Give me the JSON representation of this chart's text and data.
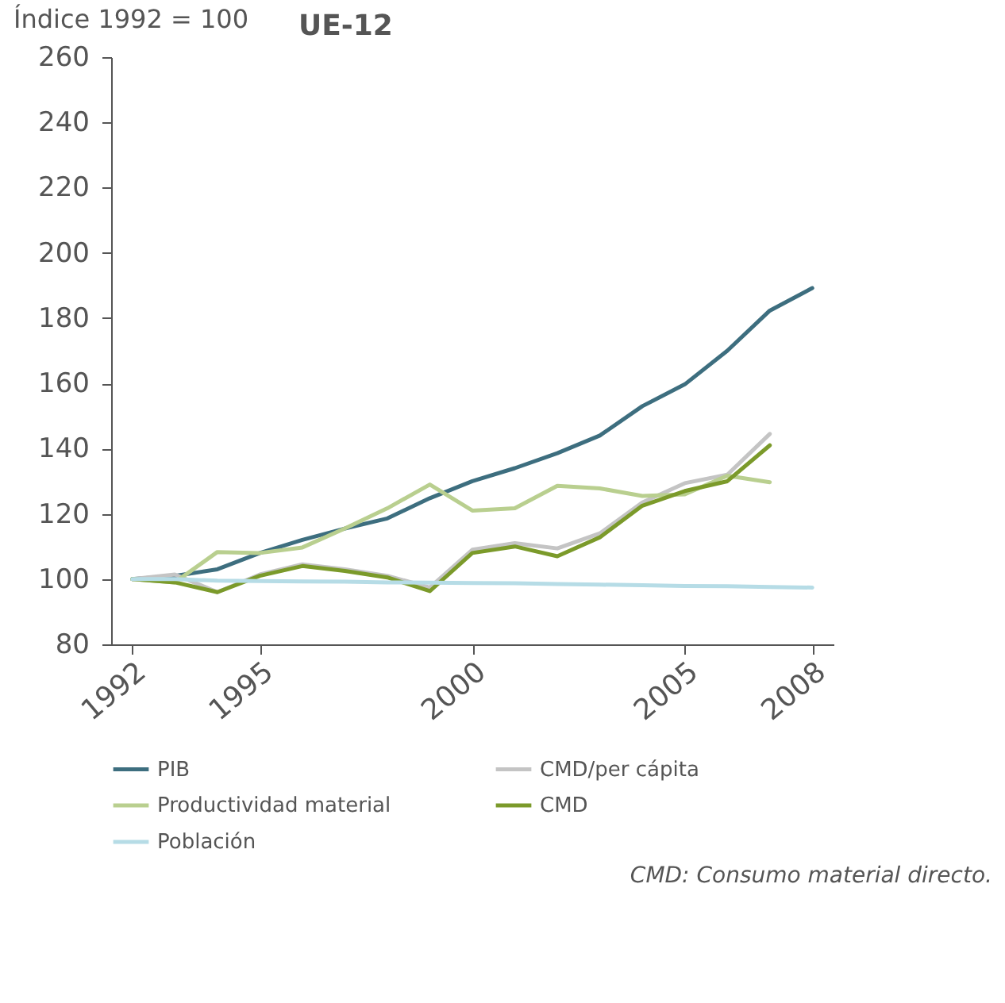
{
  "chart_data": {
    "type": "line",
    "title": "UE-12",
    "ylabel": "Índice 1992 = 100",
    "annotations": [
      "CMD: Consumo material directo."
    ],
    "x": [
      1992,
      1993,
      1994,
      1995,
      1996,
      1997,
      1998,
      1999,
      2000,
      2001,
      2002,
      2003,
      2004,
      2005,
      2006,
      2007,
      2008
    ],
    "series": [
      {
        "name": "PIB",
        "color": "#3d6e7f",
        "values": [
          100,
          101,
          103,
          108,
          112,
          115.5,
          118.6,
          124.8,
          130,
          134,
          138.6,
          144,
          153,
          159.7,
          170,
          182.3,
          189.2
        ]
      },
      {
        "name": "CMD/per cápita",
        "color": "#c4c4c4",
        "values": [
          100,
          101.4,
          96,
          101.4,
          104.5,
          103,
          101,
          97.4,
          109,
          111,
          109.4,
          114,
          123.5,
          129.4,
          132,
          144.5,
          null
        ]
      },
      {
        "name": "Productividad material",
        "color": "#b9cf8f",
        "values": [
          100,
          99,
          108.3,
          108,
          109.7,
          115.5,
          121.7,
          129,
          121,
          121.7,
          128.6,
          127.8,
          125.5,
          126,
          131.7,
          129.7,
          null
        ]
      },
      {
        "name": "CMD",
        "color": "#7b9a2a",
        "values": [
          100,
          99,
          96,
          101,
          104,
          102.5,
          100.5,
          96.3,
          108,
          110,
          107,
          112.8,
          122.5,
          127,
          130,
          141,
          null
        ]
      },
      {
        "name": "Población",
        "color": "#b6dce6",
        "values": [
          100,
          100,
          99.5,
          99.4,
          99.3,
          99.2,
          99,
          98.9,
          98.8,
          98.7,
          98.5,
          98.3,
          98.1,
          97.9,
          97.8,
          97.6,
          97.4
        ]
      }
    ],
    "xlim": [
      1991.5,
      2008.5
    ],
    "xticks": [
      1992,
      1995,
      2000,
      2005,
      2008
    ],
    "ylim": [
      80,
      260
    ],
    "yticks": [
      80,
      100,
      120,
      140,
      160,
      180,
      200,
      220,
      240,
      260
    ],
    "grid": false,
    "legend": "bottom",
    "marker": "none",
    "line_style": "solid"
  }
}
